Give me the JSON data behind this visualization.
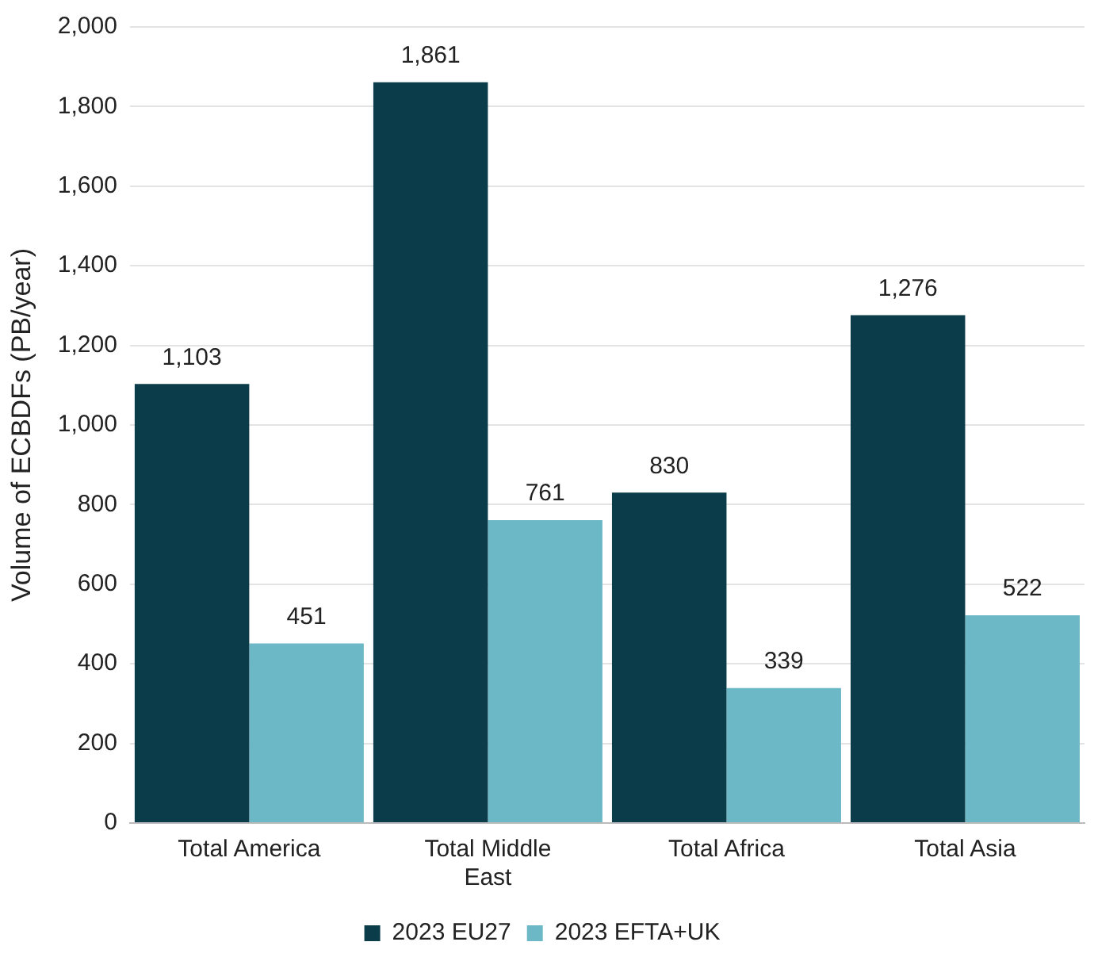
{
  "chart_data": {
    "type": "bar",
    "ylabel": "Volume of ECBDFs (PB/year)",
    "categories": [
      "Total America",
      "Total Middle East",
      "Total Africa",
      "Total Asia"
    ],
    "series": [
      {
        "name": "2023 EU27",
        "color": "#0b3c4a",
        "values": [
          1103,
          1861,
          830,
          1276
        ],
        "value_labels": [
          "1,103",
          "1,861",
          "830",
          "1,276"
        ]
      },
      {
        "name": "2023 EFTA+UK",
        "color": "#6cb8c6",
        "values": [
          451,
          761,
          339,
          522
        ],
        "value_labels": [
          "451",
          "761",
          "339",
          "522"
        ]
      }
    ],
    "ylim": [
      0,
      2000
    ],
    "yticks": [
      0,
      200,
      400,
      600,
      800,
      {
        "value": 1000,
        "label": "1,000"
      },
      {
        "value": 1200,
        "label": "1,200"
      },
      {
        "value": 1400,
        "label": "1,400"
      },
      {
        "value": 1600,
        "label": "1,600"
      },
      {
        "value": 1800,
        "label": "1,800"
      },
      {
        "value": 2000,
        "label": "2,000"
      }
    ],
    "grid": "y",
    "legend": "bottom"
  }
}
